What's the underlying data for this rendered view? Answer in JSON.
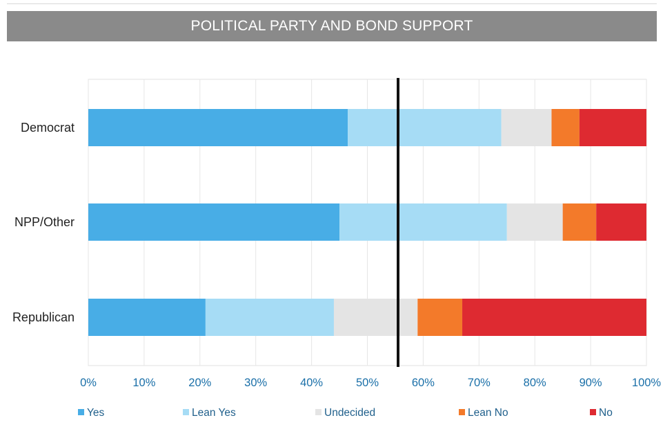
{
  "title": "POLITICAL PARTY AND BOND SUPPORT",
  "colors": {
    "title_bar": "#8a8a8a",
    "yes": "#48ade6",
    "lean_yes": "#a6dcf5",
    "undecided": "#e4e4e4",
    "lean_no": "#f37a2a",
    "no": "#de2a31",
    "threshold_line": "#111111"
  },
  "chart_data": {
    "type": "bar",
    "orientation": "horizontal",
    "stacked": true,
    "title": "POLITICAL PARTY AND BOND SUPPORT",
    "categories": [
      "Democrat",
      "NPP/Other",
      "Republican"
    ],
    "series": [
      {
        "name": "Yes",
        "color": "#48ade6",
        "values": [
          46.5,
          45,
          21
        ]
      },
      {
        "name": "Lean Yes",
        "color": "#a6dcf5",
        "values": [
          27.5,
          30,
          23
        ]
      },
      {
        "name": "Undecided",
        "color": "#e4e4e4",
        "values": [
          9,
          10,
          15
        ]
      },
      {
        "name": "Lean No",
        "color": "#f37a2a",
        "values": [
          5,
          6,
          8
        ]
      },
      {
        "name": "No",
        "color": "#de2a31",
        "values": [
          12,
          9,
          33
        ]
      }
    ],
    "xlim": [
      0,
      100
    ],
    "xticks": [
      "0%",
      "10%",
      "20%",
      "30%",
      "40%",
      "50%",
      "60%",
      "70%",
      "80%",
      "90%",
      "100%"
    ],
    "reference_line": 55.5,
    "legend_position": "bottom",
    "grid": true
  }
}
